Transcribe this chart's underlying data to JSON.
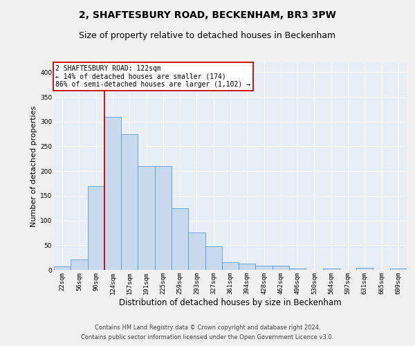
{
  "title": "2, SHAFTESBURY ROAD, BECKENHAM, BR3 3PW",
  "subtitle": "Size of property relative to detached houses in Beckenham",
  "xlabel": "Distribution of detached houses by size in Beckenham",
  "ylabel": "Number of detached properties",
  "categories": [
    "22sqm",
    "56sqm",
    "90sqm",
    "124sqm",
    "157sqm",
    "191sqm",
    "225sqm",
    "259sqm",
    "293sqm",
    "327sqm",
    "361sqm",
    "394sqm",
    "428sqm",
    "462sqm",
    "496sqm",
    "530sqm",
    "564sqm",
    "597sqm",
    "631sqm",
    "665sqm",
    "699sqm"
  ],
  "values": [
    7,
    21,
    170,
    310,
    275,
    210,
    210,
    125,
    75,
    48,
    15,
    12,
    8,
    8,
    3,
    0,
    3,
    0,
    4,
    0,
    3
  ],
  "bar_color": "#c9d9ed",
  "bar_edge_color": "#5b9bd5",
  "background_color": "#e8eef5",
  "grid_color": "#ffffff",
  "vline_color": "#cc0000",
  "vline_x_index": 3,
  "annotation_lines": [
    "2 SHAFTESBURY ROAD: 122sqm",
    "← 14% of detached houses are smaller (174)",
    "86% of semi-detached houses are larger (1,102) →"
  ],
  "annotation_box_facecolor": "#ffffff",
  "annotation_box_edgecolor": "#cc0000",
  "footer1": "Contains HM Land Registry data © Crown copyright and database right 2024.",
  "footer2": "Contains public sector information licensed under the Open Government Licence v3.0.",
  "ylim_max": 420,
  "yticks": [
    0,
    50,
    100,
    150,
    200,
    250,
    300,
    350,
    400
  ],
  "title_fontsize": 10,
  "subtitle_fontsize": 9,
  "ylabel_fontsize": 8,
  "xlabel_fontsize": 8.5,
  "tick_fontsize": 6.5,
  "annot_fontsize": 7,
  "footer_fontsize": 6
}
